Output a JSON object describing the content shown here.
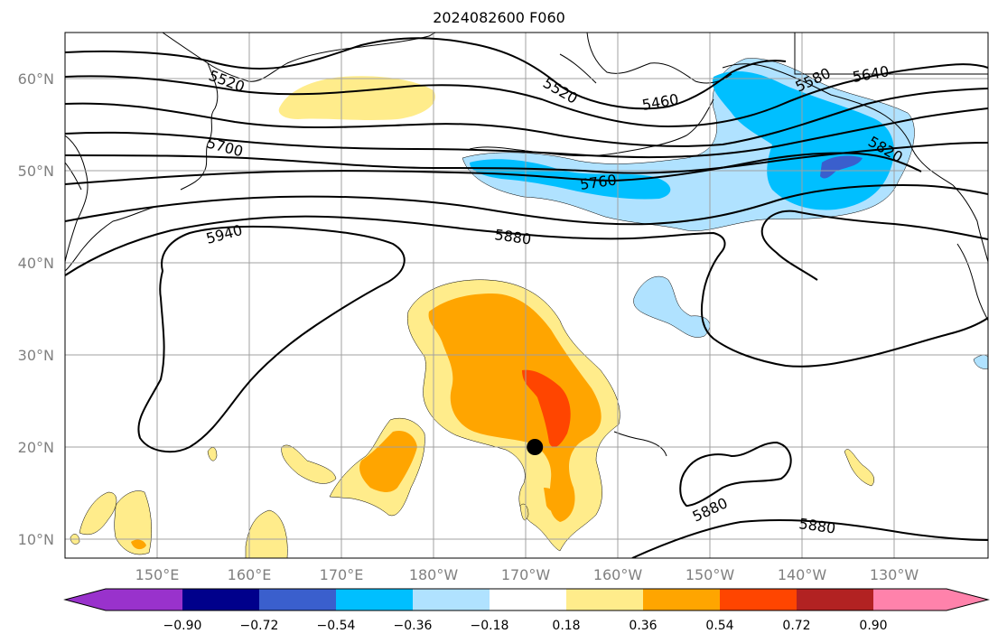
{
  "title": "2024082600 F060",
  "map": {
    "lat_labels": [
      "60°N",
      "50°N",
      "40°N",
      "30°N",
      "20°N",
      "10°N"
    ],
    "lon_labels": [
      "150°E",
      "160°E",
      "170°E",
      "180°W",
      "170°W",
      "160°W",
      "150°W",
      "140°W",
      "130°W"
    ],
    "contour_labels": [
      {
        "id": "c5520a",
        "text": "5520"
      },
      {
        "id": "c5520b",
        "text": "5520"
      },
      {
        "id": "c5460",
        "text": "5460"
      },
      {
        "id": "c5580",
        "text": "5580"
      },
      {
        "id": "c5640",
        "text": "5640"
      },
      {
        "id": "c5700",
        "text": "5700"
      },
      {
        "id": "c5760",
        "text": "5760"
      },
      {
        "id": "c5820",
        "text": "5820"
      },
      {
        "id": "c5940",
        "text": "5940"
      },
      {
        "id": "c5880a",
        "text": "5880"
      },
      {
        "id": "c5880b",
        "text": "5880"
      },
      {
        "id": "c5880c",
        "text": "5880"
      }
    ],
    "marker": {
      "lon": -169.0,
      "lat": 20.0
    }
  },
  "colorbar": {
    "tick_labels": [
      "−0.90",
      "−0.72",
      "−0.54",
      "−0.36",
      "−0.18",
      "0.18",
      "0.36",
      "0.54",
      "0.72",
      "0.90"
    ],
    "colors": [
      "#9932cc",
      "#00008b",
      "#3a5fcd",
      "#00bfff",
      "#b0e2ff",
      "#ffffff",
      "#ffec8b",
      "#ffa500",
      "#ff4500",
      "#b22222",
      "#ff82ab"
    ]
  }
}
